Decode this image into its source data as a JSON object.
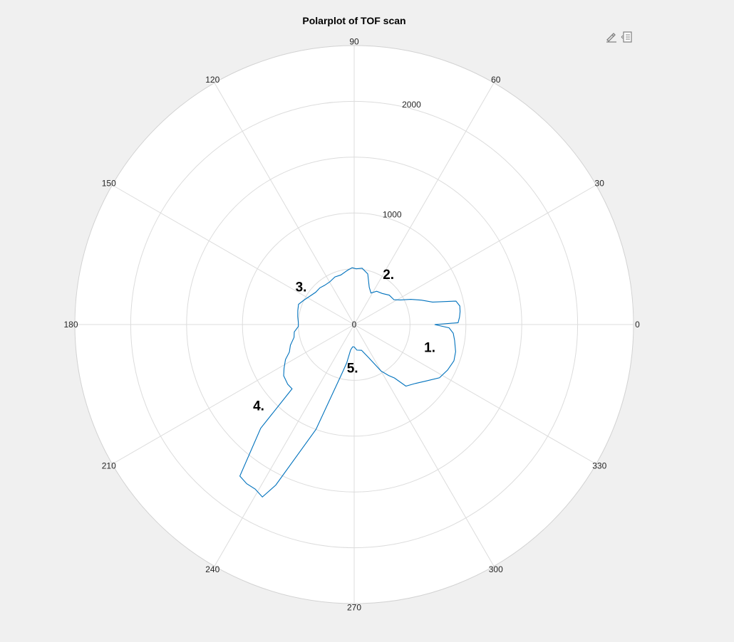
{
  "chart_data": {
    "type": "line",
    "title": "Polarplot of TOF scan",
    "theta_ticks": [
      "0",
      "30",
      "60",
      "90",
      "120",
      "150",
      "180",
      "210",
      "240",
      "270",
      "300",
      "330"
    ],
    "r_tick_labels": [
      "0",
      "1000",
      "2000"
    ],
    "r_ticks": [
      0,
      1000,
      2000
    ],
    "r_lim": [
      0,
      2500
    ],
    "theta_unit": "degrees",
    "theta_zero": "right",
    "theta_direction": "counterclockwise",
    "grid": true,
    "series": [
      {
        "color": "#0072BD",
        "points": [
          [
            0,
            720
          ],
          [
            1,
            930
          ],
          [
            4,
            945
          ],
          [
            7,
            955
          ],
          [
            10,
            960
          ],
          [
            13,
            935
          ],
          [
            16,
            730
          ],
          [
            20,
            640
          ],
          [
            24,
            555
          ],
          [
            28,
            470
          ],
          [
            32,
            420
          ],
          [
            40,
            410
          ],
          [
            48,
            375
          ],
          [
            56,
            360
          ],
          [
            62,
            320
          ],
          [
            68,
            360
          ],
          [
            75,
            470
          ],
          [
            82,
            510
          ],
          [
            88,
            500
          ],
          [
            92,
            510
          ],
          [
            97,
            490
          ],
          [
            105,
            460
          ],
          [
            112,
            460
          ],
          [
            120,
            440
          ],
          [
            127,
            440
          ],
          [
            133,
            450
          ],
          [
            140,
            450
          ],
          [
            147,
            470
          ],
          [
            154,
            500
          ],
          [
            160,
            530
          ],
          [
            166,
            520
          ],
          [
            172,
            510
          ],
          [
            178,
            500
          ],
          [
            182,
            500
          ],
          [
            187,
            540
          ],
          [
            192,
            550
          ],
          [
            198,
            600
          ],
          [
            203,
            630
          ],
          [
            207,
            690
          ],
          [
            212,
            740
          ],
          [
            216,
            780
          ],
          [
            222,
            800
          ],
          [
            226,
            800
          ],
          [
            228,
            1250
          ],
          [
            233,
            1700
          ],
          [
            236,
            1720
          ],
          [
            239,
            1720
          ],
          [
            242,
            1750
          ],
          [
            244,
            1600
          ],
          [
            250,
            1000
          ],
          [
            256,
            450
          ],
          [
            259,
            350
          ],
          [
            262,
            230
          ],
          [
            266,
            200
          ],
          [
            270,
            200
          ],
          [
            276,
            230
          ],
          [
            286,
            240
          ],
          [
            294,
            330
          ],
          [
            300,
            480
          ],
          [
            304,
            550
          ],
          [
            307,
            600
          ],
          [
            310,
            720
          ],
          [
            316,
            760
          ],
          [
            322,
            820
          ],
          [
            328,
            900
          ],
          [
            334,
            930
          ],
          [
            340,
            950
          ],
          [
            345,
            940
          ],
          [
            351,
            910
          ],
          [
            355,
            890
          ],
          [
            358,
            850
          ],
          [
            0,
            720
          ]
        ]
      }
    ],
    "annotations": [
      "1.",
      "2.",
      "3.",
      "4.",
      "5."
    ]
  },
  "toolbar": {
    "brush_icon": "brush-icon",
    "legend_icon": "legend-icon"
  }
}
